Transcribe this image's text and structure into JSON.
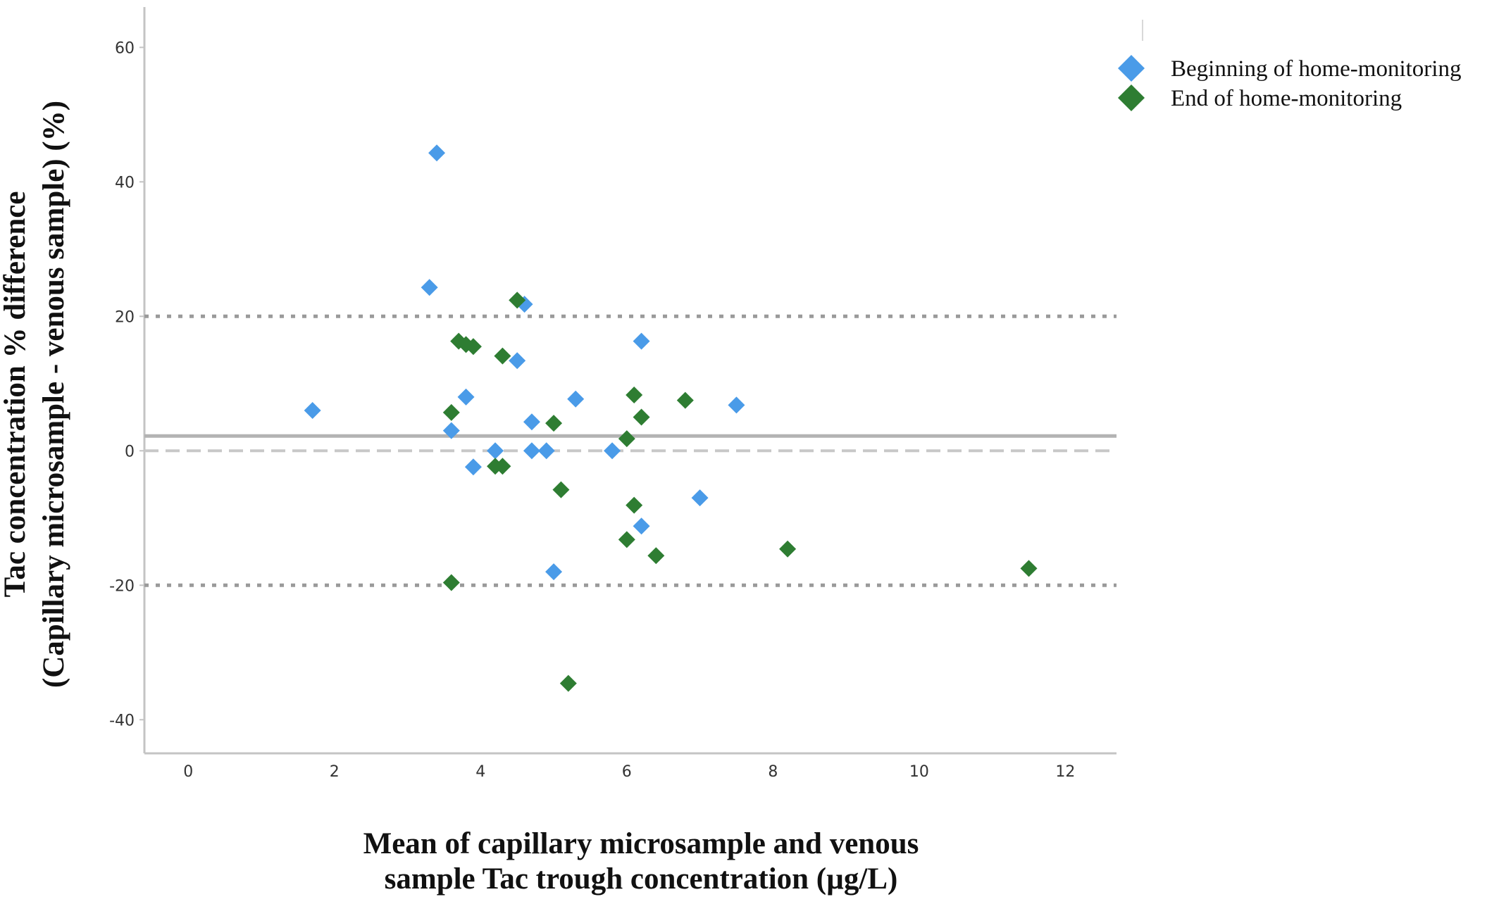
{
  "chart_data": {
    "type": "scatter",
    "title": "",
    "xlabel_lines": [
      "Mean of capillary microsample and venous",
      "sample Tac trough concentration (µg/L)"
    ],
    "ylabel_lines": [
      "Tac concentration % difference",
      "(Capillary microsample - venous sample) (%)"
    ],
    "xlim": [
      -0.6,
      12.7
    ],
    "ylim": [
      -45,
      66
    ],
    "x_ticks": [
      0,
      2,
      4,
      6,
      8,
      10,
      12
    ],
    "y_ticks": [
      -40,
      -20,
      0,
      20,
      40,
      60
    ],
    "grid": false,
    "legend_position": "top-right",
    "reference_lines": [
      {
        "kind": "mean",
        "y": 2.2,
        "style": "solid",
        "color": "#b3b3b3"
      },
      {
        "kind": "zero",
        "y": 0,
        "style": "dashed",
        "color": "#c8c8c8"
      },
      {
        "kind": "upper-limit",
        "y": 20,
        "style": "dotted",
        "color": "#9a9a9a"
      },
      {
        "kind": "lower-limit",
        "y": -20,
        "style": "dotted",
        "color": "#9a9a9a"
      }
    ],
    "series": [
      {
        "name": "Beginning of home-monitoring",
        "color": "#4a9be8",
        "marker": "diamond",
        "points": [
          [
            1.7,
            6
          ],
          [
            3.3,
            24.3
          ],
          [
            3.4,
            44.3
          ],
          [
            3.6,
            3
          ],
          [
            3.8,
            8
          ],
          [
            3.9,
            -2.4
          ],
          [
            4.2,
            0
          ],
          [
            4.5,
            13.4
          ],
          [
            4.6,
            21.8
          ],
          [
            4.7,
            4.3
          ],
          [
            4.7,
            0
          ],
          [
            4.9,
            0
          ],
          [
            5.0,
            -18
          ],
          [
            5.3,
            7.7
          ],
          [
            5.8,
            0
          ],
          [
            6.2,
            16.3
          ],
          [
            6.2,
            -11.2
          ],
          [
            7.0,
            -7
          ],
          [
            7.5,
            6.8
          ]
        ]
      },
      {
        "name": "End of home-monitoring",
        "color": "#2e7d32",
        "marker": "diamond",
        "points": [
          [
            3.6,
            5.7
          ],
          [
            3.6,
            -19.6
          ],
          [
            3.7,
            16.3
          ],
          [
            3.8,
            15.8
          ],
          [
            3.9,
            15.5
          ],
          [
            4.2,
            -2.3
          ],
          [
            4.3,
            14.1
          ],
          [
            4.3,
            -2.3
          ],
          [
            4.5,
            22.4
          ],
          [
            5.0,
            4.1
          ],
          [
            5.1,
            -5.8
          ],
          [
            5.2,
            -34.6
          ],
          [
            6.0,
            1.8
          ],
          [
            6.0,
            -13.2
          ],
          [
            6.1,
            8.3
          ],
          [
            6.1,
            -8.1
          ],
          [
            6.2,
            5
          ],
          [
            6.4,
            -15.6
          ],
          [
            6.8,
            7.5
          ],
          [
            8.2,
            -14.6
          ],
          [
            11.5,
            -17.5
          ]
        ]
      }
    ]
  }
}
